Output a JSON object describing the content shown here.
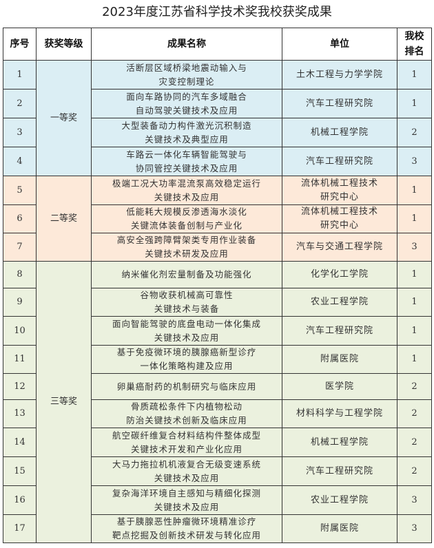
{
  "title": "2023年度江苏省科学技术奖我校获奖成果",
  "table": {
    "headers": [
      "序号",
      "获奖等级",
      "成果名称",
      "单位",
      "我校\n排名"
    ],
    "colors": {
      "一等奖": "#dbeef4",
      "二等奖": "#fde9d9",
      "三等奖": "#ebf1de"
    },
    "rows": [
      {
        "no": "1",
        "level": "一等奖",
        "name": [
          "活断层区域桥梁地震动输入与",
          "灾变控制理论"
        ],
        "unit": [
          "土木工程与力学学院"
        ],
        "rank": "1"
      },
      {
        "no": "2",
        "level": "一等奖",
        "name": [
          "面向车路协同的汽车多域融合",
          "自动驾驶关键技术及应用"
        ],
        "unit": [
          "汽车工程研究院"
        ],
        "rank": "1"
      },
      {
        "no": "3",
        "level": "一等奖",
        "name": [
          "大型装备动力构件激光沉积制造",
          "关键技术及典型应用"
        ],
        "unit": [
          "机械工程学院"
        ],
        "rank": "2"
      },
      {
        "no": "4",
        "level": "一等奖",
        "name": [
          "车路云一体化车辆智能驾驶与",
          "协同管控关键技术及应用"
        ],
        "unit": [
          "汽车工程研究院"
        ],
        "rank": "3"
      },
      {
        "no": "5",
        "level": "二等奖",
        "name": [
          "极端工况大功率混流泵高效稳定运行",
          "关键技术及应用"
        ],
        "unit": [
          "流体机械工程技术",
          "研究中心"
        ],
        "rank": "1"
      },
      {
        "no": "6",
        "level": "二等奖",
        "name": [
          "低能耗大规模反渗透海水淡化",
          "关键流体装备创制与产业化"
        ],
        "unit": [
          "流体机械工程技术",
          "研究中心"
        ],
        "rank": "1"
      },
      {
        "no": "7",
        "level": "二等奖",
        "name": [
          "高安全强跨障臂架类专用作业装备",
          "关键技术研发及应用"
        ],
        "unit": [
          "汽车与交通工程学院"
        ],
        "rank": "3"
      },
      {
        "no": "8",
        "level": "三等奖",
        "name": [
          "纳米催化剂宏量制备及功能强化"
        ],
        "unit": [
          "化学化工学院"
        ],
        "rank": "1"
      },
      {
        "no": "9",
        "level": "三等奖",
        "name": [
          "谷物收获机械高可靠性",
          "关键技术与装备"
        ],
        "unit": [
          "农业工程学院"
        ],
        "rank": "1"
      },
      {
        "no": "10",
        "level": "三等奖",
        "name": [
          "面向智能驾驶的底盘电动一体化集成",
          "关键技术及应用"
        ],
        "unit": [
          "汽车工程研究院"
        ],
        "rank": "1"
      },
      {
        "no": "11",
        "level": "三等奖",
        "name": [
          "基于免疫微环境的胰腺癌新型诊疗",
          "一体化策略构建及应用"
        ],
        "unit": [
          "附属医院"
        ],
        "rank": "1"
      },
      {
        "no": "12",
        "level": "三等奖",
        "name": [
          "卵巢癌耐药的机制研究与临床应用"
        ],
        "unit": [
          "医学院"
        ],
        "rank": "2"
      },
      {
        "no": "13",
        "level": "三等奖",
        "name": [
          "骨质疏松条件下内植物松动",
          "防治关键技术创新及临床应用"
        ],
        "unit": [
          "材料科学与工程学院"
        ],
        "rank": "2"
      },
      {
        "no": "14",
        "level": "三等奖",
        "name": [
          "航空碳纤维复合材料结构件整体成型",
          "关键技术开发和产业化应用"
        ],
        "unit": [
          "机械工程学院"
        ],
        "rank": "2"
      },
      {
        "no": "15",
        "level": "三等奖",
        "name": [
          "大马力拖拉机机液复合无级变速系统",
          "关键技术及应用"
        ],
        "unit": [
          "汽车工程研究院"
        ],
        "rank": "2"
      },
      {
        "no": "16",
        "level": "三等奖",
        "name": [
          "复杂海洋环境自主感知与精细化探测",
          "关键技术及应用"
        ],
        "unit": [
          "农业工程学院"
        ],
        "rank": "3"
      },
      {
        "no": "17",
        "level": "三等奖",
        "name": [
          "基于胰腺恶性肿瘤微环境精准诊疗",
          "靶点挖掘及创新技术研发与转化应用"
        ],
        "unit": [
          "附属医院"
        ],
        "rank": "3"
      }
    ]
  }
}
